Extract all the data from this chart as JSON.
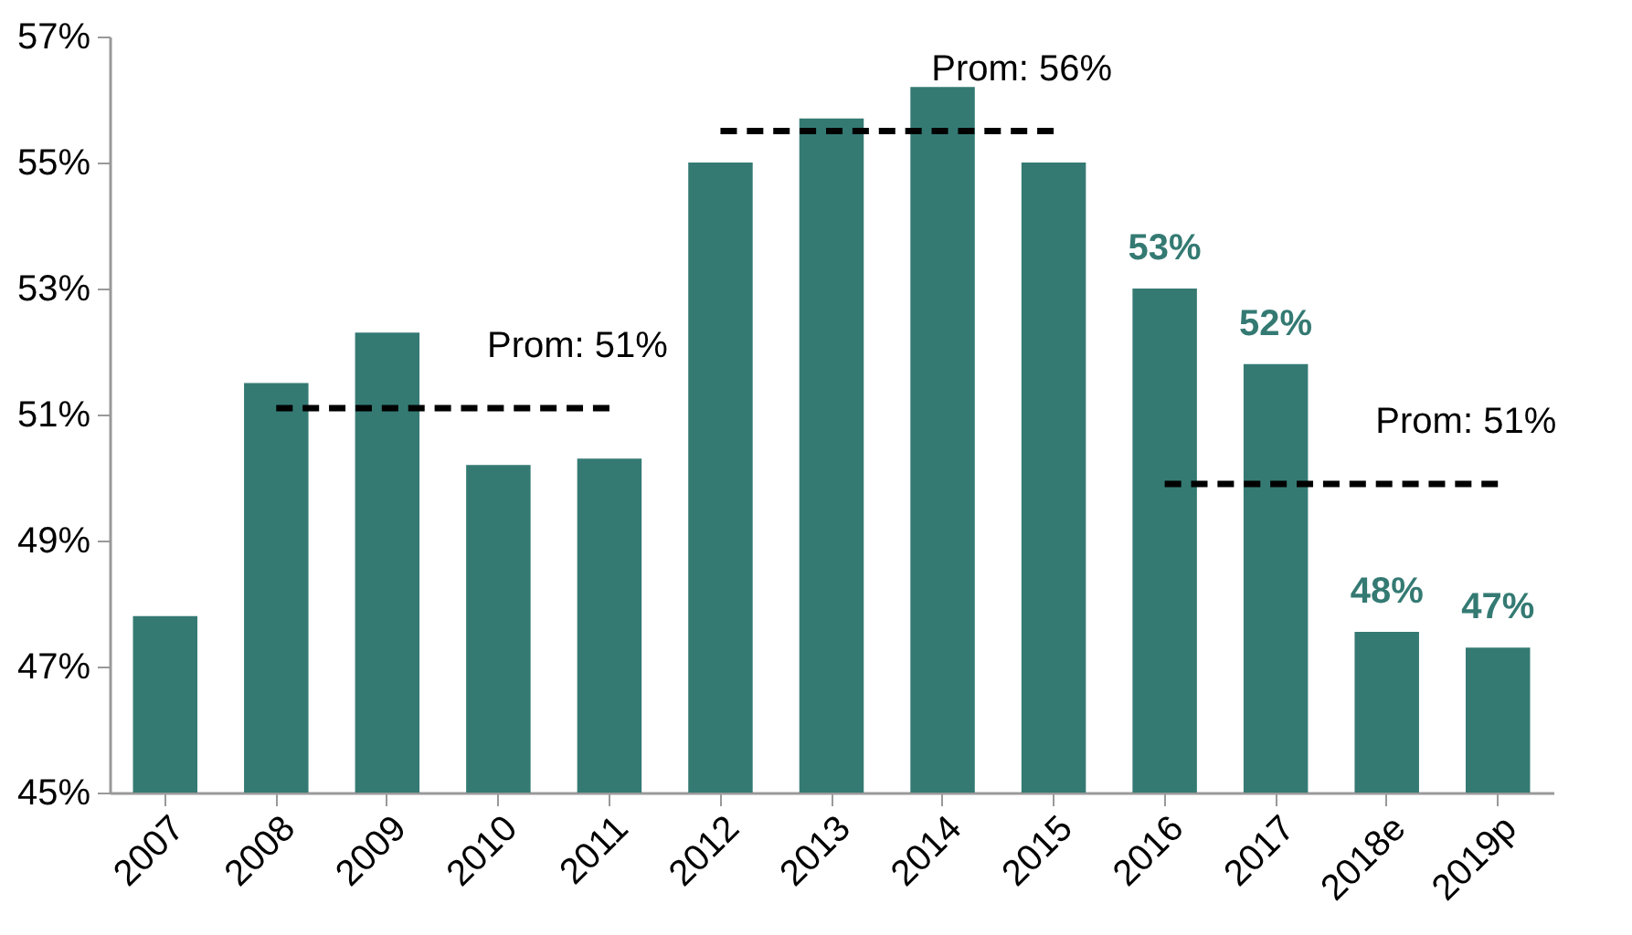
{
  "chart_data": {
    "type": "bar",
    "categories": [
      "2007",
      "2008",
      "2009",
      "2010",
      "2011",
      "2012",
      "2013",
      "2014",
      "2015",
      "2016",
      "2017",
      "2018e",
      "2019p"
    ],
    "series": [
      {
        "color": "#347a73",
        "values": [
          47.8,
          51.5,
          52.3,
          50.2,
          50.3,
          55.0,
          55.7,
          56.2,
          55.0,
          53.0,
          51.8,
          47.55,
          47.3
        ],
        "value_labels": [
          null,
          null,
          null,
          null,
          null,
          null,
          null,
          null,
          null,
          "53%",
          "52%",
          "48%",
          "47%"
        ]
      },
      {
        "type": "line",
        "name": "Prom: 51%",
        "color": "#000000",
        "line_style": "dashed",
        "marker": "none",
        "values": [
          null,
          51.1,
          51.1,
          51.1,
          51.1,
          null,
          null,
          null,
          null,
          null,
          null,
          null,
          null
        ]
      },
      {
        "type": "line",
        "name": "Prom: 56%",
        "color": "#000000",
        "line_style": "dashed",
        "marker": "none",
        "values": [
          null,
          null,
          null,
          null,
          null,
          55.5,
          55.5,
          55.5,
          55.5,
          null,
          null,
          null,
          null
        ]
      },
      {
        "type": "line",
        "name": "Prom: 51%",
        "color": "#000000",
        "line_style": "dashed",
        "marker": "none",
        "values": [
          null,
          null,
          null,
          null,
          null,
          null,
          null,
          null,
          null,
          49.9,
          49.9,
          49.9,
          49.9
        ]
      }
    ],
    "ylim": [
      45,
      57
    ],
    "yticks": [
      {
        "value": 45,
        "label": "45%"
      },
      {
        "value": 47,
        "label": "47%"
      },
      {
        "value": 49,
        "label": "49%"
      },
      {
        "value": 51,
        "label": "51%"
      },
      {
        "value": 53,
        "label": "53%"
      },
      {
        "value": 55,
        "label": "55%"
      },
      {
        "value": 57,
        "label": "57%"
      }
    ],
    "grid": false,
    "legend": false
  }
}
